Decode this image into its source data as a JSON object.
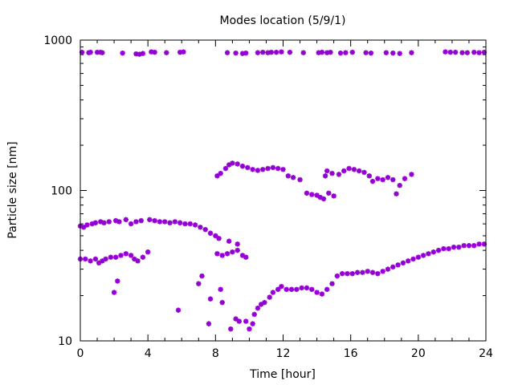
{
  "chart_data": {
    "type": "scatter",
    "title": "Modes location (5/9/1)",
    "xlabel": "Time [hour]",
    "ylabel": "Particle size [nm]",
    "xlim": [
      0,
      24
    ],
    "ylim": [
      10,
      1000
    ],
    "yscale": "log",
    "grid": false,
    "legend": "none",
    "x_ticks": [
      {
        "value": 0,
        "label": "0"
      },
      {
        "value": 4,
        "label": "4"
      },
      {
        "value": 8,
        "label": "8"
      },
      {
        "value": 12,
        "label": "12"
      },
      {
        "value": 16,
        "label": "16"
      },
      {
        "value": 20,
        "label": "20"
      },
      {
        "value": 24,
        "label": "24"
      }
    ],
    "y_ticks": [
      {
        "value": 10,
        "label": "10"
      },
      {
        "value": 100,
        "label": "100"
      },
      {
        "value": 1000,
        "label": "1000"
      }
    ],
    "marker_color": "#9400d3",
    "series": [
      {
        "points": [
          [
            0.1,
            830
          ],
          [
            0.5,
            825
          ],
          [
            0.6,
            830
          ],
          [
            1.0,
            830
          ],
          [
            1.2,
            830
          ],
          [
            1.3,
            825
          ],
          [
            2.5,
            820
          ],
          [
            3.3,
            810
          ],
          [
            3.5,
            805
          ],
          [
            3.7,
            815
          ],
          [
            4.2,
            835
          ],
          [
            4.4,
            830
          ],
          [
            5.1,
            825
          ],
          [
            5.9,
            830
          ],
          [
            6.1,
            835
          ],
          [
            8.7,
            825
          ],
          [
            9.2,
            820
          ],
          [
            9.6,
            815
          ],
          [
            9.8,
            820
          ],
          [
            10.5,
            825
          ],
          [
            10.8,
            830
          ],
          [
            11.1,
            825
          ],
          [
            11.3,
            830
          ],
          [
            11.6,
            830
          ],
          [
            11.9,
            835
          ],
          [
            12.4,
            830
          ],
          [
            13.2,
            825
          ],
          [
            14.1,
            825
          ],
          [
            14.3,
            830
          ],
          [
            14.6,
            825
          ],
          [
            14.8,
            830
          ],
          [
            15.4,
            820
          ],
          [
            15.7,
            825
          ],
          [
            16.1,
            830
          ],
          [
            16.9,
            825
          ],
          [
            17.2,
            820
          ],
          [
            18.1,
            825
          ],
          [
            18.5,
            820
          ],
          [
            18.9,
            815
          ],
          [
            19.6,
            825
          ],
          [
            21.6,
            835
          ],
          [
            21.9,
            830
          ],
          [
            22.2,
            830
          ],
          [
            22.6,
            825
          ],
          [
            22.9,
            825
          ],
          [
            23.3,
            830
          ],
          [
            23.6,
            825
          ],
          [
            23.9,
            830
          ]
        ]
      },
      {
        "points": [
          [
            0.0,
            58
          ],
          [
            0.2,
            57
          ],
          [
            0.4,
            59
          ],
          [
            0.7,
            60
          ],
          [
            0.9,
            61
          ],
          [
            1.2,
            62
          ],
          [
            1.4,
            61
          ],
          [
            1.7,
            62
          ],
          [
            2.1,
            63
          ],
          [
            2.3,
            62
          ],
          [
            2.7,
            64
          ],
          [
            3.0,
            60
          ],
          [
            3.3,
            62
          ],
          [
            3.6,
            63
          ],
          [
            4.1,
            64
          ],
          [
            4.4,
            63
          ],
          [
            4.7,
            62
          ],
          [
            5.0,
            62
          ],
          [
            5.3,
            61
          ],
          [
            5.6,
            62
          ],
          [
            5.9,
            61
          ],
          [
            6.2,
            60
          ],
          [
            6.5,
            60
          ],
          [
            6.8,
            59
          ],
          [
            7.1,
            57
          ],
          [
            7.4,
            55
          ],
          [
            7.7,
            52
          ],
          [
            8.0,
            50
          ],
          [
            8.2,
            48
          ],
          [
            8.8,
            46
          ],
          [
            9.3,
            44
          ]
        ]
      },
      {
        "points": [
          [
            0.0,
            35
          ],
          [
            0.3,
            35
          ],
          [
            0.6,
            34
          ],
          [
            0.9,
            35
          ],
          [
            1.1,
            33
          ],
          [
            1.3,
            34
          ],
          [
            1.5,
            35
          ],
          [
            1.8,
            36
          ],
          [
            2.1,
            36
          ],
          [
            2.4,
            37
          ],
          [
            2.7,
            38
          ],
          [
            3.0,
            37
          ],
          [
            3.2,
            35
          ],
          [
            3.4,
            34
          ],
          [
            3.7,
            36
          ],
          [
            4.0,
            39
          ],
          [
            8.1,
            38
          ],
          [
            8.4,
            37
          ],
          [
            8.7,
            38
          ],
          [
            9.0,
            39
          ],
          [
            9.3,
            40
          ],
          [
            9.6,
            37
          ],
          [
            9.8,
            36
          ],
          [
            2.0,
            21
          ],
          [
            2.2,
            25
          ],
          [
            5.8,
            16
          ],
          [
            7.0,
            24
          ],
          [
            7.2,
            27
          ],
          [
            7.6,
            13
          ],
          [
            7.7,
            19
          ],
          [
            8.3,
            22
          ],
          [
            8.4,
            18
          ],
          [
            8.9,
            12
          ],
          [
            9.2,
            14
          ],
          [
            9.4,
            13.5
          ],
          [
            9.8,
            13.5
          ],
          [
            10.0,
            12
          ],
          [
            10.2,
            13
          ],
          [
            10.3,
            15
          ],
          [
            10.5,
            16.5
          ],
          [
            10.7,
            17.5
          ],
          [
            10.9,
            18
          ],
          [
            11.2,
            19.5
          ],
          [
            11.4,
            21
          ],
          [
            11.7,
            22
          ],
          [
            11.9,
            23
          ],
          [
            12.2,
            22
          ],
          [
            12.5,
            22
          ],
          [
            12.8,
            22
          ],
          [
            13.1,
            22.5
          ],
          [
            13.4,
            22.5
          ],
          [
            13.7,
            22
          ],
          [
            14.0,
            21
          ],
          [
            14.3,
            20.5
          ],
          [
            14.6,
            22
          ],
          [
            14.9,
            24
          ],
          [
            15.2,
            27
          ],
          [
            15.5,
            28
          ],
          [
            15.8,
            28
          ],
          [
            16.1,
            28
          ],
          [
            16.4,
            28.5
          ],
          [
            16.7,
            28.5
          ],
          [
            17.0,
            29
          ],
          [
            17.3,
            28.5
          ],
          [
            17.6,
            28
          ],
          [
            17.9,
            29
          ],
          [
            18.2,
            30
          ],
          [
            18.5,
            31
          ],
          [
            18.8,
            32
          ],
          [
            19.1,
            33
          ],
          [
            19.4,
            34
          ],
          [
            19.7,
            35
          ],
          [
            20.0,
            36
          ],
          [
            20.3,
            37
          ],
          [
            20.6,
            38
          ],
          [
            20.9,
            39
          ],
          [
            21.2,
            40
          ],
          [
            21.5,
            41
          ],
          [
            21.8,
            41
          ],
          [
            22.1,
            42
          ],
          [
            22.4,
            42
          ],
          [
            22.7,
            43
          ],
          [
            23.0,
            43
          ],
          [
            23.3,
            43
          ],
          [
            23.6,
            44
          ],
          [
            23.9,
            44
          ]
        ]
      },
      {
        "points": [
          [
            8.1,
            125
          ],
          [
            8.3,
            130
          ],
          [
            8.6,
            140
          ],
          [
            8.8,
            148
          ],
          [
            9.0,
            152
          ],
          [
            9.3,
            150
          ],
          [
            9.6,
            145
          ],
          [
            9.9,
            142
          ],
          [
            10.2,
            138
          ],
          [
            10.5,
            136
          ],
          [
            10.8,
            138
          ],
          [
            11.1,
            140
          ],
          [
            11.4,
            142
          ],
          [
            11.7,
            140
          ],
          [
            12.0,
            138
          ],
          [
            12.3,
            125
          ],
          [
            12.6,
            122
          ],
          [
            13.0,
            118
          ],
          [
            13.4,
            96
          ],
          [
            13.7,
            94
          ],
          [
            14.0,
            93
          ],
          [
            14.2,
            90
          ],
          [
            14.4,
            88
          ],
          [
            14.7,
            96
          ],
          [
            15.0,
            92
          ],
          [
            14.5,
            125
          ],
          [
            14.6,
            135
          ],
          [
            14.9,
            130
          ],
          [
            15.3,
            128
          ],
          [
            15.6,
            135
          ],
          [
            15.9,
            140
          ],
          [
            16.2,
            138
          ],
          [
            16.5,
            135
          ],
          [
            16.8,
            132
          ],
          [
            17.1,
            125
          ],
          [
            17.3,
            115
          ],
          [
            17.6,
            120
          ],
          [
            17.9,
            118
          ],
          [
            18.2,
            122
          ],
          [
            18.5,
            118
          ],
          [
            18.7,
            95
          ],
          [
            18.9,
            108
          ],
          [
            19.2,
            120
          ],
          [
            19.6,
            128
          ]
        ]
      }
    ]
  }
}
